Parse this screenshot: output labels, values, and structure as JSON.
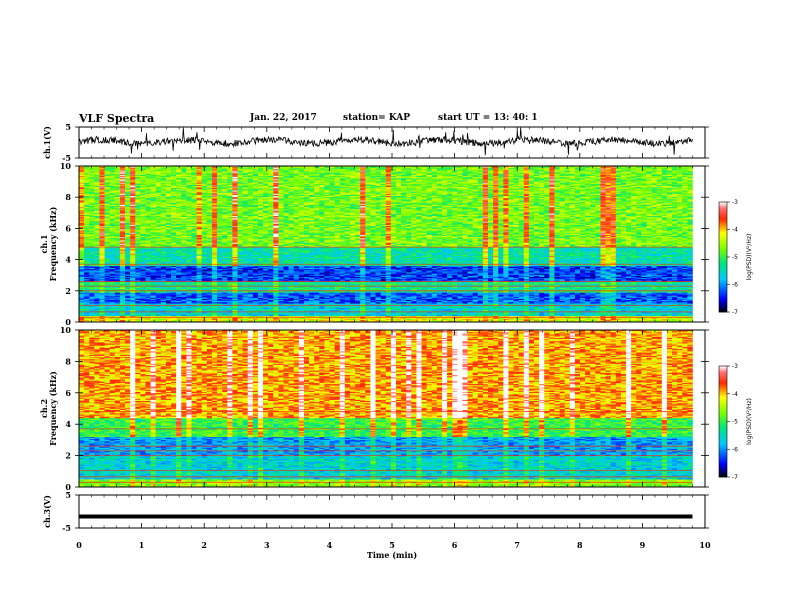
{
  "header": {
    "title": "VLF Spectra",
    "date": "Jan. 22, 2017",
    "station": "station= KAP",
    "start": "start UT = 13: 40: 1"
  },
  "chart_data": [
    {
      "type": "line",
      "panel": "ch1-waveform",
      "ylabel": "ch.1(V)",
      "ylim": [
        -5,
        5
      ],
      "yticks": [
        "5",
        "-5"
      ],
      "xlim": [
        0,
        10
      ],
      "description_values": {
        "baseline": 0.3,
        "approx_range": [
          -4.5,
          4.5
        ]
      }
    },
    {
      "type": "heatmap",
      "panel": "ch1-spectrogram",
      "ylabel": "ch.1\nFrequency (kHz)",
      "ylim": [
        0,
        10
      ],
      "yticks": [
        "0",
        "2",
        "4",
        "6",
        "8",
        "10"
      ],
      "xlim": [
        0,
        9.8
      ],
      "bands": [
        {
          "f": [
            0,
            0.4
          ],
          "level": -4.3
        },
        {
          "f": [
            0.4,
            1.2
          ],
          "level": -5.6
        },
        {
          "f": [
            1.2,
            1.9
          ],
          "level": -6.2
        },
        {
          "f": [
            1.9,
            2.6
          ],
          "level": -5.3
        },
        {
          "f": [
            2.6,
            3.6
          ],
          "level": -6.3
        },
        {
          "f": [
            3.6,
            4.8
          ],
          "level": -5.4
        },
        {
          "f": [
            4.8,
            10
          ],
          "level": -4.7
        }
      ],
      "colorbar": {
        "label": "log(PSD)(V²/Hz)",
        "min": -7,
        "max": -3,
        "ticks": [
          "-3",
          "-4",
          "-5",
          "-6",
          "-7"
        ]
      }
    },
    {
      "type": "heatmap",
      "panel": "ch2-spectrogram",
      "ylabel": "ch.2\nFrequency (kHz)",
      "ylim": [
        0,
        10
      ],
      "yticks": [
        "0",
        "2",
        "4",
        "6",
        "8",
        "10"
      ],
      "xlim": [
        0,
        9.8
      ],
      "bands": [
        {
          "f": [
            0,
            0.5
          ],
          "level": -4.6
        },
        {
          "f": [
            0.5,
            2.0
          ],
          "level": -5.6
        },
        {
          "f": [
            2.0,
            3.2
          ],
          "level": -5.9
        },
        {
          "f": [
            3.2,
            4.4
          ],
          "level": -5.0
        },
        {
          "f": [
            4.4,
            10
          ],
          "level": -3.9
        }
      ],
      "colorbar": {
        "label": "log(PSD)(V²/Hz)",
        "min": -7,
        "max": -3,
        "ticks": [
          "-3",
          "-4",
          "-5",
          "-6",
          "-7"
        ]
      }
    },
    {
      "type": "line",
      "panel": "ch3-waveform",
      "ylabel": "ch.3(V)",
      "ylim": [
        -5,
        5
      ],
      "yticks": [
        "5",
        "-5"
      ],
      "xlim": [
        0,
        10
      ],
      "description_values": {
        "baseline": -1.5
      }
    }
  ],
  "xaxis": {
    "label": "Time (min)",
    "ticks": [
      "0",
      "1",
      "2",
      "3",
      "4",
      "5",
      "6",
      "7",
      "8",
      "9",
      "10"
    ]
  },
  "colors": {
    "waveform": "#000000",
    "colormap": [
      "#000000",
      "#0000ff",
      "#00ffff",
      "#00ff00",
      "#ffff00",
      "#ff0000",
      "#ffffff"
    ]
  }
}
